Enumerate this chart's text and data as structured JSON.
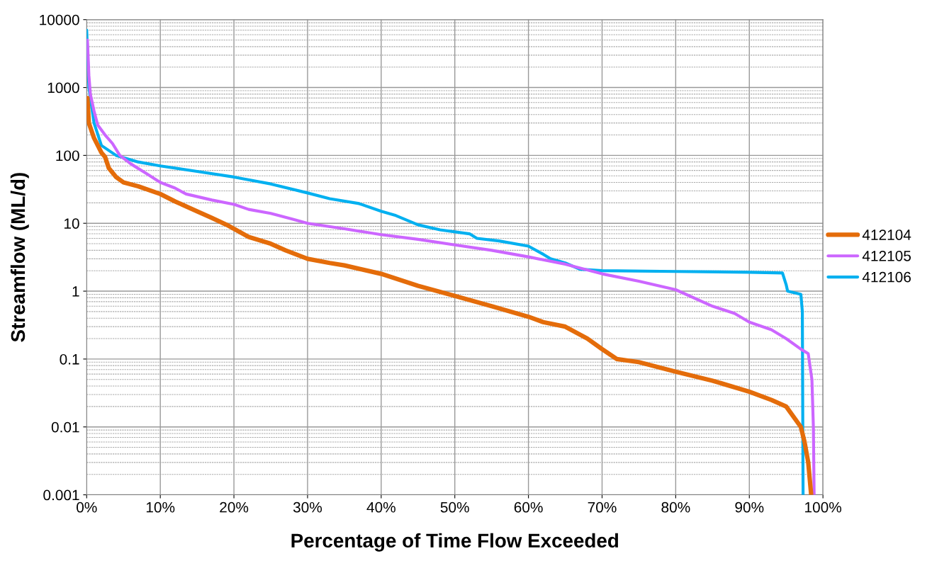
{
  "chart_data": {
    "type": "line",
    "xlabel": "Percentage of Time Flow Exceeded",
    "ylabel": "Streamflow (ML/d)",
    "log": "y",
    "grid": true,
    "legend": "right",
    "marker": "none",
    "line_style": "solid",
    "xlim": [
      0,
      100
    ],
    "ylim": [
      0.001,
      10000
    ],
    "xticks": [
      {
        "value": 0,
        "label": "0%"
      },
      {
        "value": 10,
        "label": "10%"
      },
      {
        "value": 20,
        "label": "20%"
      },
      {
        "value": 30,
        "label": "30%"
      },
      {
        "value": 40,
        "label": "40%"
      },
      {
        "value": 50,
        "label": "50%"
      },
      {
        "value": 60,
        "label": "60%"
      },
      {
        "value": 70,
        "label": "70%"
      },
      {
        "value": 80,
        "label": "80%"
      },
      {
        "value": 90,
        "label": "90%"
      },
      {
        "value": 100,
        "label": "100%"
      }
    ],
    "yticks": [
      0.001,
      0.01,
      0.1,
      1,
      10,
      100,
      1000,
      10000
    ],
    "series": [
      {
        "name": "412104",
        "color": "#e46c0a",
        "x": [
          0.1,
          0.3,
          1,
          2,
          2.5,
          3,
          4,
          5,
          7,
          10,
          12,
          15,
          17,
          19,
          22,
          25,
          27,
          30,
          33,
          35,
          40,
          45,
          50,
          55,
          60,
          62,
          65,
          68,
          70,
          72,
          75,
          80,
          85,
          90,
          93,
          95,
          97,
          97.5,
          98,
          98.4
        ],
        "values": [
          700,
          300,
          180,
          110,
          95,
          65,
          48,
          40,
          35,
          27,
          21,
          15,
          12,
          9.5,
          6.3,
          5,
          4,
          3,
          2.6,
          2.4,
          1.8,
          1.2,
          0.85,
          0.6,
          0.42,
          0.35,
          0.3,
          0.2,
          0.14,
          0.1,
          0.09,
          0.065,
          0.048,
          0.033,
          0.025,
          0.02,
          0.01,
          0.006,
          0.003,
          0.001
        ]
      },
      {
        "name": "412105",
        "color": "#cc66ff",
        "x": [
          0.1,
          0.3,
          0.5,
          1,
          1.5,
          2.5,
          3.5,
          4.5,
          6,
          8,
          10,
          12,
          13.5,
          17,
          20,
          22,
          25,
          28,
          30,
          35,
          40,
          45,
          50,
          55,
          60,
          65,
          70,
          75,
          80,
          85,
          88,
          90,
          93,
          95,
          97,
          98,
          98.5,
          98.7,
          98.8
        ],
        "values": [
          5000,
          1500,
          800,
          450,
          280,
          200,
          150,
          100,
          75,
          55,
          40,
          33,
          27,
          22,
          19,
          16,
          14,
          11.5,
          10,
          8.3,
          6.8,
          5.8,
          4.8,
          4,
          3.2,
          2.5,
          1.8,
          1.4,
          1.05,
          0.6,
          0.47,
          0.35,
          0.27,
          0.2,
          0.14,
          0.12,
          0.05,
          0.01,
          0.001
        ]
      },
      {
        "name": "412106",
        "color": "#00b0f0",
        "x": [
          0,
          0.3,
          1,
          2,
          4,
          7,
          10,
          15,
          20,
          25,
          30,
          33,
          37,
          40,
          42,
          45,
          48,
          52,
          53,
          56,
          60,
          62,
          63,
          65,
          67,
          70,
          80,
          90,
          94.5,
          95,
          95.2,
          97,
          97.2,
          97.3
        ],
        "values": [
          7000,
          1000,
          300,
          140,
          100,
          80,
          70,
          58,
          48,
          38,
          28,
          23,
          19.5,
          15,
          13,
          9.5,
          8,
          7,
          6,
          5.5,
          4.6,
          3.5,
          3,
          2.6,
          2.1,
          2,
          1.95,
          1.9,
          1.85,
          1.25,
          1,
          0.9,
          0.5,
          0.001
        ]
      }
    ]
  }
}
